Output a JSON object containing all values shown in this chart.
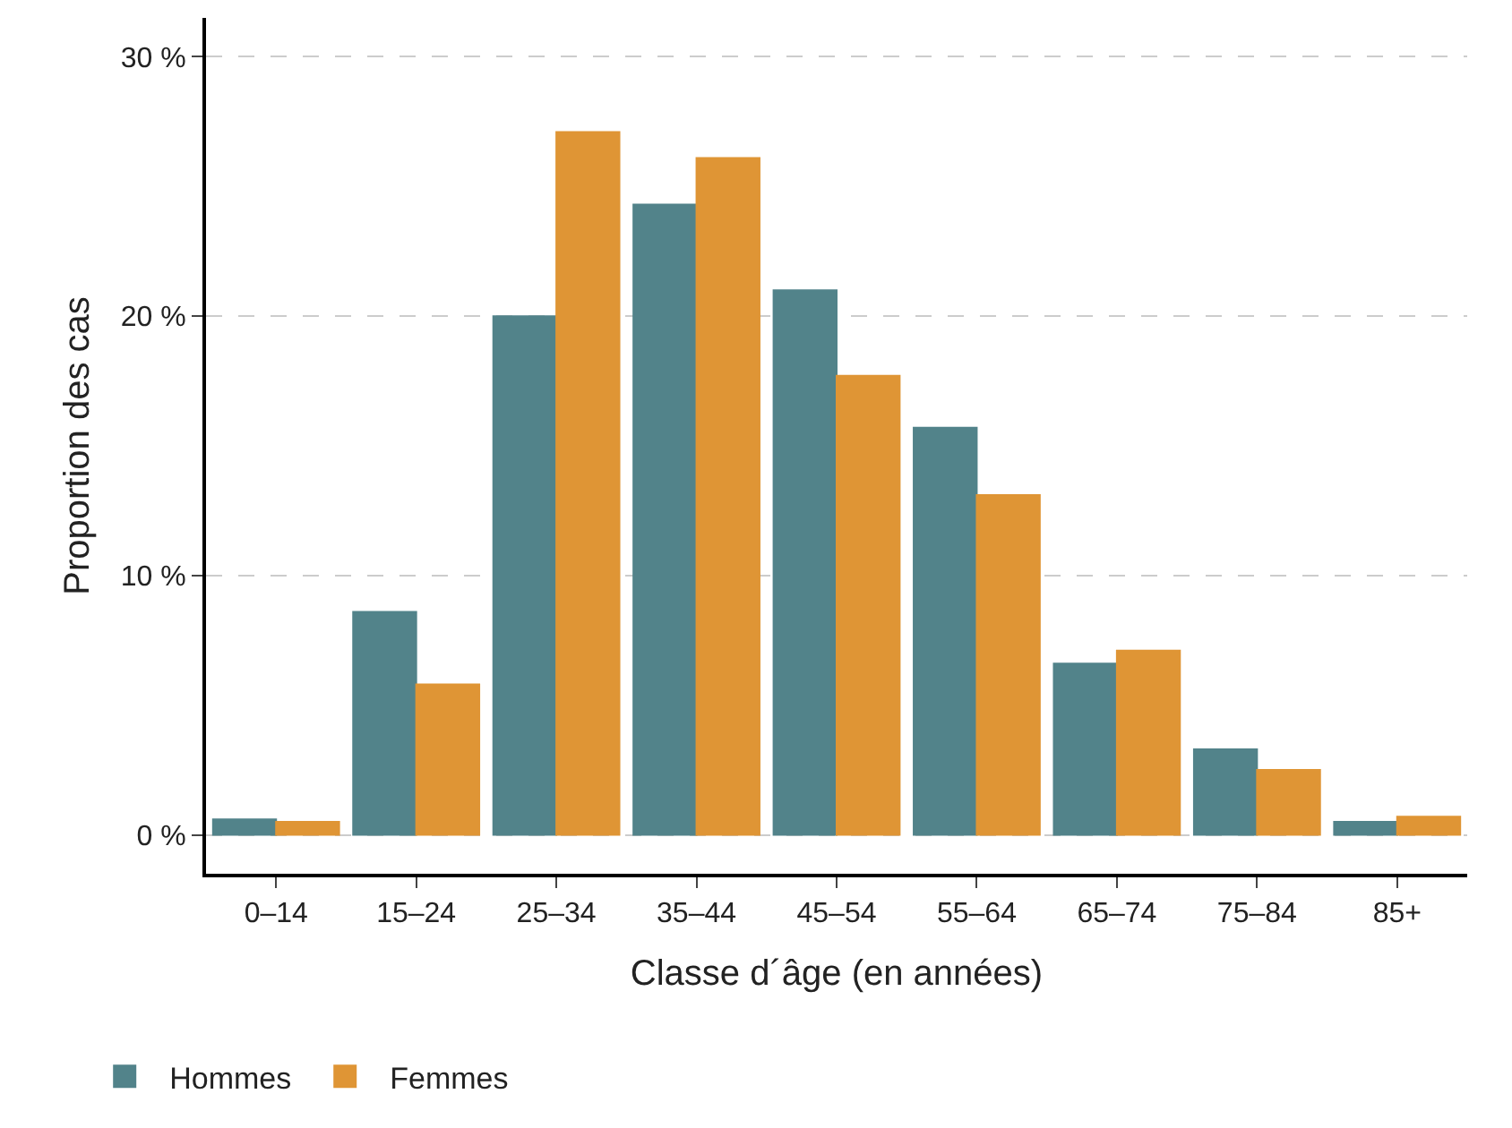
{
  "chart_data": {
    "type": "bar",
    "xlabel": "Classe d´âge (en années)",
    "ylabel": "Proportion des cas",
    "categories": [
      "0–14",
      "15–24",
      "25–34",
      "35–44",
      "45–54",
      "55–64",
      "65–74",
      "75–84",
      "85+"
    ],
    "series": [
      {
        "name": "Hommes",
        "color": "#52838a",
        "values": [
          0.6,
          8.6,
          20.0,
          24.3,
          21.0,
          15.7,
          6.6,
          3.3,
          0.5
        ]
      },
      {
        "name": "Femmes",
        "color": "#df9535",
        "values": [
          0.5,
          5.8,
          27.1,
          26.1,
          17.7,
          13.1,
          7.1,
          2.5,
          0.7
        ]
      }
    ],
    "ylim": [
      -1.5,
      31.5
    ],
    "yticks": [
      {
        "value": 0,
        "label": "0 %"
      },
      {
        "value": 10,
        "label": "10 %"
      },
      {
        "value": 20,
        "label": "20 %"
      },
      {
        "value": 30,
        "label": "30 %"
      }
    ],
    "grid": "y",
    "legend": "bottom left"
  }
}
